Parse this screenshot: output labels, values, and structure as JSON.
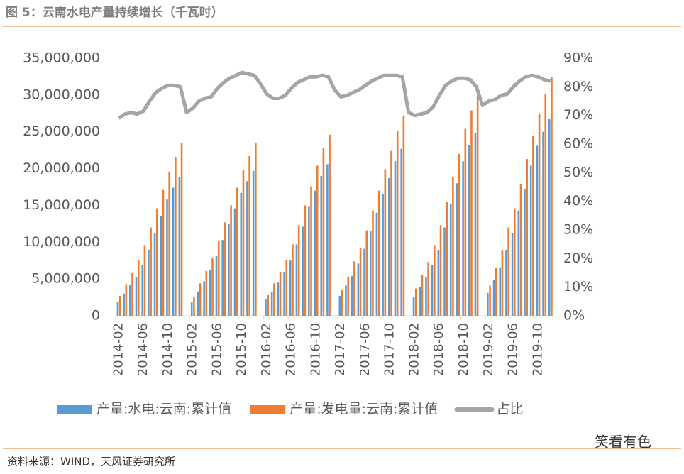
{
  "title": "图 5：云南水电产量持续增长（千瓦时）",
  "source": "资料来源：WIND，天风证券研究所",
  "watermark": "笑看有色",
  "chart_data": {
    "type": "bar-line",
    "categories": [
      "2014-02",
      null,
      null,
      null,
      "2014-06",
      null,
      null,
      null,
      "2014-10",
      null,
      null,
      null,
      "2015-02",
      null,
      null,
      null,
      "2015-06",
      null,
      null,
      null,
      "2015-10",
      null,
      null,
      null,
      "2016-02",
      null,
      null,
      null,
      "2016-06",
      null,
      null,
      null,
      "2016-10",
      null,
      null,
      null,
      "2017-02",
      null,
      null,
      null,
      "2017-06",
      null,
      null,
      null,
      "2017-10",
      null,
      null,
      null,
      "2018-02",
      null,
      null,
      null,
      "2018-06",
      null,
      null,
      null,
      "2018-10",
      null,
      null,
      null,
      "2019-02",
      null,
      null,
      null,
      "2019-06",
      null,
      null,
      null,
      "2019-10",
      null,
      null
    ],
    "ylim": [
      0,
      35000000
    ],
    "yticks": [
      0,
      {
        "value": 5000000,
        "label": "5,000,000"
      },
      {
        "value": 10000000,
        "label": "10,000,000"
      },
      {
        "value": 15000000,
        "label": "15,000,000"
      },
      {
        "value": 20000000,
        "label": "20,000,000"
      },
      {
        "value": 25000000,
        "label": "25,000,000"
      },
      {
        "value": 30000000,
        "label": "30,000,000"
      },
      {
        "value": 35000000,
        "label": "35,000,000"
      }
    ],
    "y2lim": [
      0,
      90
    ],
    "y2ticks": [
      {
        "value": 0,
        "label": "0%"
      },
      {
        "value": 10,
        "label": "10%"
      },
      {
        "value": 20,
        "label": "20%"
      },
      {
        "value": 30,
        "label": "30%"
      },
      {
        "value": 40,
        "label": "40%"
      },
      {
        "value": 50,
        "label": "50%"
      },
      {
        "value": 60,
        "label": "60%"
      },
      {
        "value": 70,
        "label": "70%"
      },
      {
        "value": 80,
        "label": "80%"
      },
      {
        "value": 90,
        "label": "90%"
      }
    ],
    "series": [
      {
        "name": "产量:水电:云南:累计值",
        "color": "#5b9bd5",
        "kind": "bar",
        "values": [
          1900000,
          3000000,
          4200000,
          5300000,
          6900000,
          9000000,
          11200000,
          13500000,
          15800000,
          17400000,
          18900000,
          null,
          1900000,
          3300000,
          4700000,
          6200000,
          8100000,
          10300000,
          12500000,
          14600000,
          16700000,
          18300000,
          19700000,
          null,
          2300000,
          3300000,
          4500000,
          5900000,
          7500000,
          9700000,
          12100000,
          14800000,
          17000000,
          19000000,
          20600000,
          null,
          2700000,
          4100000,
          5400000,
          7100000,
          9100000,
          11500000,
          14000000,
          16500000,
          18700000,
          21000000,
          22700000,
          null,
          2600000,
          3900000,
          5300000,
          6900000,
          8900000,
          12000000,
          15200000,
          18000000,
          21000000,
          23200000,
          24800000,
          null,
          3100000,
          4900000,
          6600000,
          8900000,
          11200000,
          14300000,
          17200000,
          20400000,
          23100000,
          25000000,
          26700000
        ]
      },
      {
        "name": "产量:发电量:云南:累计值",
        "color": "#ed7d31",
        "kind": "bar",
        "values": [
          2700000,
          4300000,
          5800000,
          7600000,
          9600000,
          12000000,
          14600000,
          17100000,
          19600000,
          21600000,
          23500000,
          null,
          2600000,
          4400000,
          6100000,
          7800000,
          10200000,
          12700000,
          15000000,
          17400000,
          19800000,
          21700000,
          23500000,
          null,
          2800000,
          4400000,
          5900000,
          7600000,
          9700000,
          12300000,
          15000000,
          17600000,
          20400000,
          22800000,
          24600000,
          null,
          3500000,
          5300000,
          7400000,
          9200000,
          11600000,
          14300000,
          17000000,
          19900000,
          22400000,
          25100000,
          27200000,
          null,
          3700000,
          5500000,
          7300000,
          9600000,
          12300000,
          15500000,
          18900000,
          22000000,
          25400000,
          27900000,
          30000000,
          null,
          4100000,
          6500000,
          8900000,
          12000000,
          14600000,
          17900000,
          21300000,
          24500000,
          27500000,
          30100000,
          32400000
        ]
      },
      {
        "name": "占比",
        "color": "#a5a5a5",
        "kind": "line",
        "axis": "y2",
        "values": [
          69,
          70.5,
          71,
          70.5,
          71.5,
          75,
          78,
          79.5,
          80.5,
          80.5,
          80,
          71,
          72.5,
          75,
          76,
          76.5,
          79.5,
          81.5,
          83,
          84,
          85,
          84.5,
          84,
          81,
          77.5,
          76,
          76,
          77,
          79.5,
          81.5,
          82.5,
          83.5,
          83.5,
          84,
          83.5,
          79,
          76.5,
          77,
          78,
          79,
          80.5,
          82,
          83,
          84,
          84,
          84,
          83.5,
          71,
          70,
          70.5,
          71,
          73,
          77,
          80.5,
          82,
          83,
          83,
          82.5,
          80,
          73.5,
          75,
          75.5,
          77,
          77.5,
          80,
          82,
          83.5,
          84,
          83.5,
          82.5,
          82
        ]
      }
    ]
  }
}
